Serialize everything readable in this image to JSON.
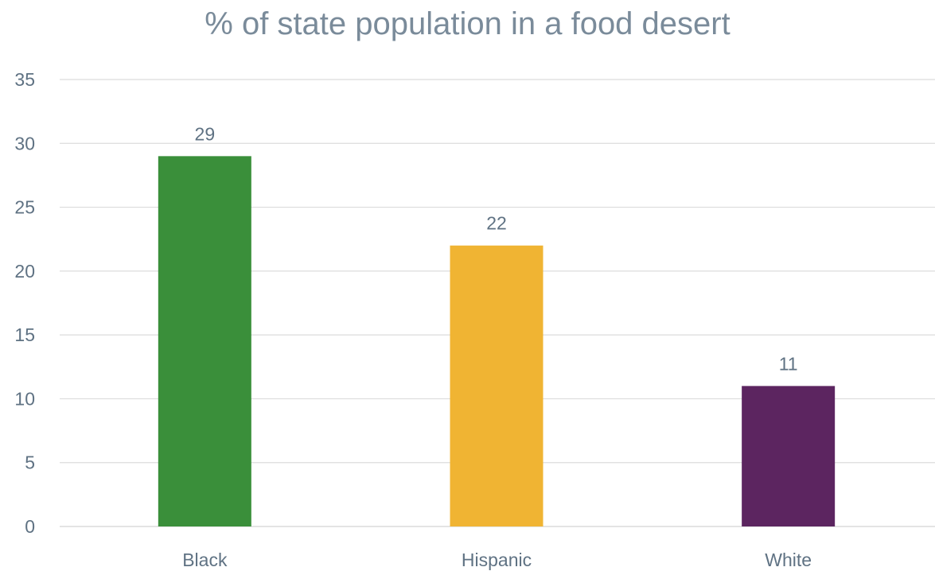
{
  "chart_data": {
    "type": "bar",
    "title": "% of state population in a food desert",
    "categories": [
      "Black",
      "Hispanic",
      "White"
    ],
    "values": [
      29,
      22,
      11
    ],
    "data_labels": [
      "29",
      "22",
      "11"
    ],
    "ylim": [
      0,
      35
    ],
    "yticks": [
      0,
      5,
      10,
      15,
      20,
      25,
      30,
      35
    ],
    "grid": true,
    "legend": "none",
    "colors": [
      "#3a8f3a",
      "#f0b433",
      "#5c2560"
    ],
    "text_color": "#5f7283",
    "grid_color": "#dcdcdc"
  }
}
